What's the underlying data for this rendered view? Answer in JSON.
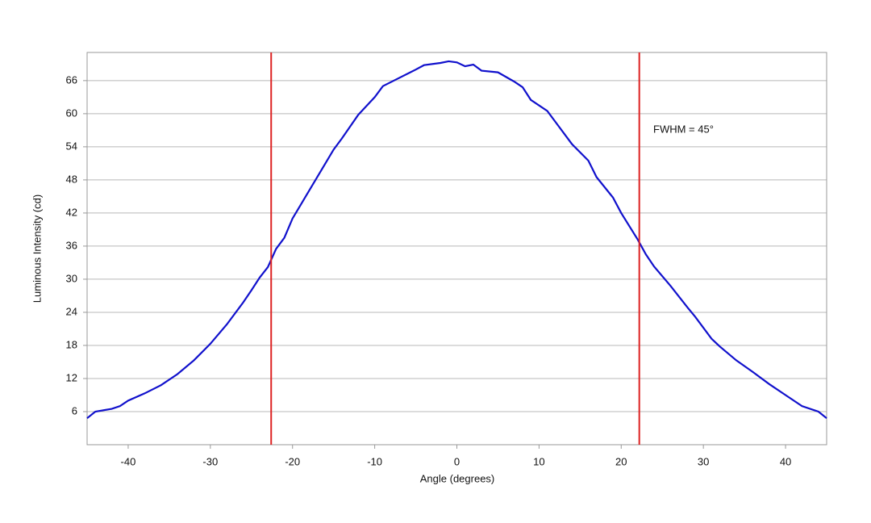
{
  "chart_data": {
    "type": "line",
    "x_label": "Angle (degrees)",
    "y_label": "Luminous Intensity (cd)",
    "annotation": "FWHM = 45°",
    "xlim": [
      -45,
      45
    ],
    "ylim": [
      0,
      71.1
    ],
    "xticks": [
      -40,
      -30,
      -20,
      -10,
      0,
      10,
      20,
      30,
      40
    ],
    "yticks": [
      6,
      12,
      18,
      24,
      30,
      36,
      42,
      48,
      54,
      60,
      66
    ],
    "grid": true,
    "vlines": {
      "color": "#dd2222",
      "x": [
        -22.6,
        22.2
      ]
    },
    "series": [
      {
        "color": "#1010cc",
        "x": [
          -45,
          -44,
          -42,
          -41,
          -40,
          -38,
          -36,
          -34,
          -32,
          -30,
          -28,
          -26,
          -25,
          -24,
          -23,
          -22,
          -21,
          -20,
          -19,
          -18,
          -16,
          -15,
          -14,
          -12,
          -10,
          -9,
          -7,
          -5,
          -4,
          -2,
          -1,
          0,
          1,
          2,
          3,
          5,
          7,
          8,
          9,
          11,
          12,
          14,
          16,
          17,
          19,
          20,
          22,
          23,
          24,
          26,
          28,
          29,
          31,
          32,
          34,
          36,
          38,
          40,
          42,
          44,
          45
        ],
        "values": [
          4.8,
          6,
          6.5,
          7.0,
          8.0,
          9.3,
          10.8,
          12.8,
          15.3,
          18.3,
          21.8,
          25.8,
          28,
          30.3,
          32.2,
          35.5,
          37.5,
          41,
          43.5,
          46,
          51,
          53.5,
          55.5,
          59.8,
          63,
          65,
          66.5,
          68,
          68.8,
          69.2,
          69.5,
          69.3,
          68.6,
          68.9,
          67.8,
          67.5,
          65.8,
          64.8,
          62.5,
          60.5,
          58.5,
          54.5,
          51.5,
          48.5,
          44.8,
          42,
          37.2,
          34.5,
          32.3,
          28.8,
          25,
          23.2,
          19.2,
          17.8,
          15.3,
          13.2,
          11.0,
          9.0,
          7.0,
          6.0,
          4.8
        ]
      }
    ]
  }
}
